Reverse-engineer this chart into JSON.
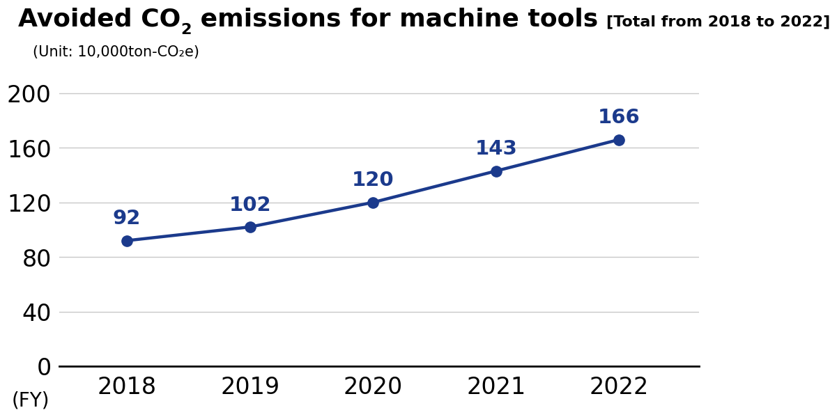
{
  "title_main": "Avoided CO",
  "title_sub2": "2",
  "title_suffix": " emissions for machine tools ",
  "title_bracket": "[Total from 2018 to 2022]",
  "unit_label": "(Unit: 10,000ton-CO₂e)",
  "xlabel": "(FY)",
  "years": [
    2018,
    2019,
    2020,
    2021,
    2022
  ],
  "values": [
    92,
    102,
    120,
    143,
    166
  ],
  "line_color": "#1b3a8c",
  "marker_color": "#1b3a8c",
  "label_color": "#1b3a8c",
  "ylim": [
    0,
    210
  ],
  "yticks": [
    0,
    40,
    80,
    120,
    160,
    200
  ],
  "background_color": "#ffffff",
  "grid_color": "#c8c8c8",
  "title_fontsize": 26,
  "bracket_fontsize": 16,
  "tick_fontsize": 24,
  "unit_fontsize": 15,
  "xlabel_fontsize": 20,
  "data_label_fontsize": 21,
  "line_width": 3.2,
  "marker_size": 11
}
